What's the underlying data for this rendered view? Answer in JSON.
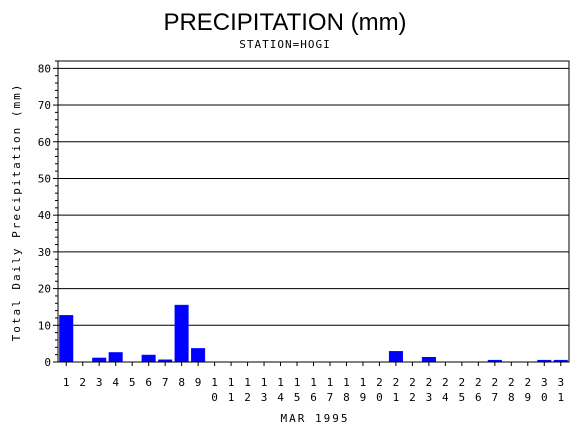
{
  "chart_data": {
    "type": "bar",
    "title": "PRECIPITATION (mm)",
    "subtitle": "STATION=HOGI",
    "xlabel": "MAR 1995",
    "ylabel": "Total Daily Precipitation (mm)",
    "ylim": [
      0,
      82
    ],
    "yticks": [
      0,
      10,
      20,
      30,
      40,
      50,
      60,
      70,
      80
    ],
    "grid": true,
    "bar_color": "#0000ff",
    "categories": [
      "1",
      "2",
      "3",
      "4",
      "5",
      "6",
      "7",
      "8",
      "9",
      "10",
      "11",
      "12",
      "13",
      "14",
      "15",
      "16",
      "17",
      "18",
      "19",
      "20",
      "21",
      "22",
      "23",
      "24",
      "25",
      "26",
      "27",
      "28",
      "29",
      "30",
      "31"
    ],
    "values": [
      12.7,
      0,
      1.1,
      2.6,
      0,
      1.9,
      0.6,
      15.5,
      3.7,
      0,
      0,
      0,
      0,
      0,
      0,
      0,
      0,
      0,
      0,
      0,
      2.9,
      0,
      1.3,
      0,
      0,
      0,
      0.5,
      0,
      0,
      0.5,
      0.5
    ]
  }
}
